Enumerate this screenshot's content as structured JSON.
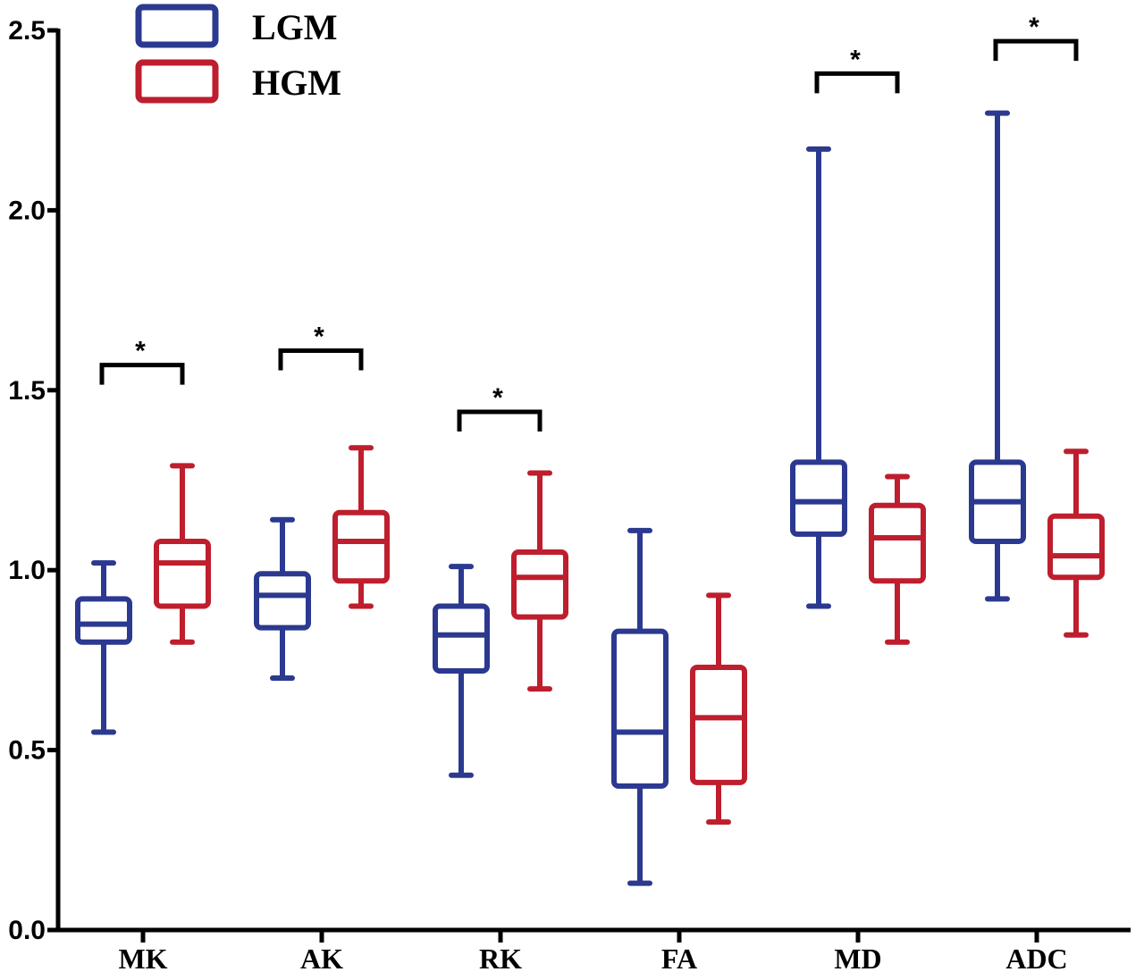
{
  "chart_data": {
    "type": "boxplot",
    "categories": [
      "MK",
      "AK",
      "RK",
      "FA",
      "MD",
      "ADC"
    ],
    "ylim": [
      0.0,
      2.5
    ],
    "yticks": [
      "0.0",
      "0.5",
      "1.0",
      "1.5",
      "2.0",
      "2.5"
    ],
    "grid": false,
    "legend_position": "top-left",
    "series": [
      {
        "name": "LGM",
        "color": "#2b3990",
        "boxes": [
          {
            "min": 0.55,
            "q1": 0.8,
            "median": 0.85,
            "q3": 0.92,
            "max": 1.02
          },
          {
            "min": 0.7,
            "q1": 0.84,
            "median": 0.93,
            "q3": 0.99,
            "max": 1.14
          },
          {
            "min": 0.43,
            "q1": 0.72,
            "median": 0.82,
            "q3": 0.9,
            "max": 1.01
          },
          {
            "min": 0.13,
            "q1": 0.4,
            "median": 0.55,
            "q3": 0.83,
            "max": 1.11
          },
          {
            "min": 0.9,
            "q1": 1.1,
            "median": 1.19,
            "q3": 1.3,
            "max": 2.17
          },
          {
            "min": 0.92,
            "q1": 1.08,
            "median": 1.19,
            "q3": 1.3,
            "max": 2.27
          }
        ]
      },
      {
        "name": "HGM",
        "color": "#be1e2d",
        "boxes": [
          {
            "min": 0.8,
            "q1": 0.9,
            "median": 1.02,
            "q3": 1.08,
            "max": 1.29
          },
          {
            "min": 0.9,
            "q1": 0.97,
            "median": 1.08,
            "q3": 1.16,
            "max": 1.34
          },
          {
            "min": 0.67,
            "q1": 0.87,
            "median": 0.98,
            "q3": 1.05,
            "max": 1.27
          },
          {
            "min": 0.3,
            "q1": 0.41,
            "median": 0.59,
            "q3": 0.73,
            "max": 0.93
          },
          {
            "min": 0.8,
            "q1": 0.97,
            "median": 1.09,
            "q3": 1.18,
            "max": 1.26
          },
          {
            "min": 0.82,
            "q1": 0.98,
            "median": 1.04,
            "q3": 1.15,
            "max": 1.33
          }
        ]
      }
    ],
    "significance": [
      {
        "category": "MK",
        "y": 1.57,
        "label": "*"
      },
      {
        "category": "AK",
        "y": 1.61,
        "label": "*"
      },
      {
        "category": "RK",
        "y": 1.44,
        "label": "*"
      },
      {
        "category": "MD",
        "y": 2.38,
        "label": "*"
      },
      {
        "category": "ADC",
        "y": 2.47,
        "label": "*"
      }
    ]
  }
}
